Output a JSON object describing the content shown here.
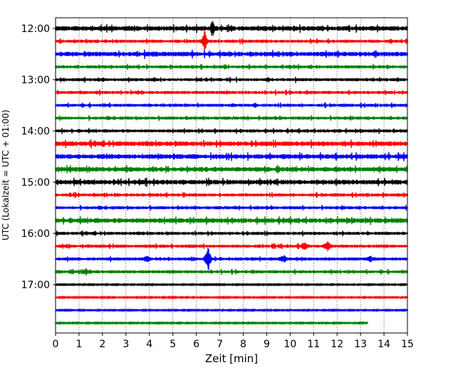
{
  "chart_data": {
    "type": "line",
    "title": "",
    "xlabel": "Zeit  [min]",
    "ylabel": "UTC (Lokalzeit = UTC + 01:00)",
    "xlim": [
      0,
      15
    ],
    "x_ticks": [
      0,
      1,
      2,
      3,
      4,
      5,
      6,
      7,
      8,
      9,
      10,
      11,
      12,
      13,
      14,
      15
    ],
    "y_tick_labels": [
      "12:00",
      "13:00",
      "14:00",
      "15:00",
      "16:00",
      "17:00"
    ],
    "grid": "vertical dotted",
    "colors": [
      "#000000",
      "#ff0000",
      "#0000ff",
      "#008000"
    ],
    "series": [
      {
        "start": "12:00",
        "end_min": 15,
        "amplitude": "medium",
        "events": [
          {
            "t": 6.7,
            "amp": "large"
          },
          {
            "t": 14.4,
            "amp": "small"
          }
        ]
      },
      {
        "start": "12:15",
        "end_min": 15,
        "amplitude": "low",
        "events": [
          {
            "t": 6.35,
            "amp": "large"
          },
          {
            "t": 14.3,
            "amp": "small"
          }
        ]
      },
      {
        "start": "12:30",
        "end_min": 15,
        "amplitude": "medium",
        "events": []
      },
      {
        "start": "12:45",
        "end_min": 15,
        "amplitude": "low",
        "events": []
      },
      {
        "start": "13:00",
        "end_min": 15,
        "amplitude": "low",
        "events": []
      },
      {
        "start": "13:15",
        "end_min": 15,
        "amplitude": "low",
        "events": []
      },
      {
        "start": "13:30",
        "end_min": 15,
        "amplitude": "low",
        "events": [
          {
            "t": 8.5,
            "amp": "small"
          }
        ]
      },
      {
        "start": "13:45",
        "end_min": 15,
        "amplitude": "low",
        "events": []
      },
      {
        "start": "14:00",
        "end_min": 15,
        "amplitude": "low",
        "events": []
      },
      {
        "start": "14:15",
        "end_min": 15,
        "amplitude": "medium",
        "events": [
          {
            "t": 13.7,
            "amp": "small"
          }
        ]
      },
      {
        "start": "14:30",
        "end_min": 15,
        "amplitude": "medium",
        "events": []
      },
      {
        "start": "14:45",
        "end_min": 15,
        "amplitude": "medium",
        "events": [
          {
            "t": 3.2,
            "amp": "small"
          }
        ]
      },
      {
        "start": "15:00",
        "end_min": 15,
        "amplitude": "medium",
        "events": [
          {
            "t": 8.3,
            "amp": "small"
          }
        ]
      },
      {
        "start": "15:15",
        "end_min": 15,
        "amplitude": "low",
        "events": []
      },
      {
        "start": "15:30",
        "end_min": 15,
        "amplitude": "low",
        "events": []
      },
      {
        "start": "15:45",
        "end_min": 15,
        "amplitude": "medium",
        "events": []
      },
      {
        "start": "16:00",
        "end_min": 15,
        "amplitude": "low",
        "events": []
      },
      {
        "start": "16:15",
        "end_min": 15,
        "amplitude": "low",
        "events": [
          {
            "t": 10.6,
            "amp": "medium"
          },
          {
            "t": 11.6,
            "amp": "medium"
          }
        ]
      },
      {
        "start": "16:30",
        "end_min": 15,
        "amplitude": "low",
        "events": [
          {
            "t": 3.9,
            "amp": "medium"
          },
          {
            "t": 6.5,
            "amp": "huge"
          },
          {
            "t": 9.7,
            "amp": "medium"
          },
          {
            "t": 13.4,
            "amp": "medium"
          }
        ]
      },
      {
        "start": "16:45",
        "end_min": 15,
        "amplitude": "low",
        "events": [
          {
            "t": 1.3,
            "amp": "medium"
          }
        ]
      },
      {
        "start": "17:00",
        "end_min": 15,
        "amplitude": "flat",
        "events": []
      },
      {
        "start": "17:15",
        "end_min": 15,
        "amplitude": "flat",
        "events": []
      },
      {
        "start": "17:30",
        "end_min": 15,
        "amplitude": "flat",
        "events": []
      },
      {
        "start": "17:45",
        "end_min": 13.3,
        "amplitude": "flat",
        "events": []
      }
    ]
  }
}
